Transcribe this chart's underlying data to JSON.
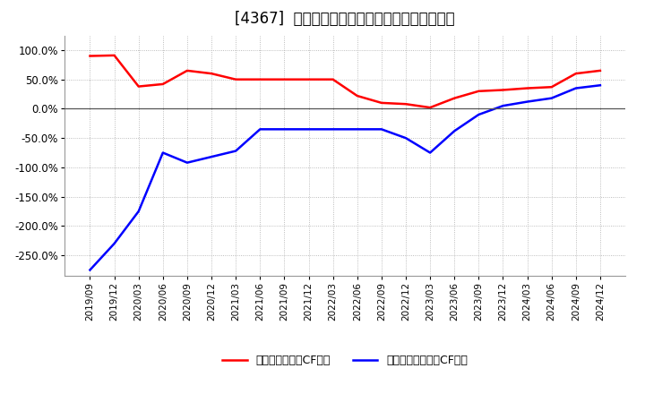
{
  "title": "[4367]  有利子負債キャッシュフロー比率の推移",
  "x_labels": [
    "2019/09",
    "2019/12",
    "2020/03",
    "2020/06",
    "2020/09",
    "2020/12",
    "2021/03",
    "2021/06",
    "2021/09",
    "2021/12",
    "2022/03",
    "2022/06",
    "2022/09",
    "2022/12",
    "2023/03",
    "2023/06",
    "2023/09",
    "2023/12",
    "2024/03",
    "2024/06",
    "2024/09",
    "2024/12"
  ],
  "red_values": [
    90.0,
    91.0,
    38.0,
    42.0,
    65.0,
    60.0,
    50.0,
    50.0,
    50.0,
    50.0,
    50.0,
    22.0,
    10.0,
    8.0,
    2.0,
    18.0,
    30.0,
    32.0,
    35.0,
    37.0,
    60.0,
    65.0
  ],
  "blue_values": [
    -275.0,
    -230.0,
    -175.0,
    -75.0,
    -92.0,
    -82.0,
    -72.0,
    -35.0,
    -35.0,
    -35.0,
    -35.0,
    -35.0,
    -35.0,
    -50.0,
    -75.0,
    -38.0,
    -10.0,
    5.0,
    12.0,
    18.0,
    35.0,
    40.0
  ],
  "red_color": "#ff0000",
  "blue_color": "#0000ff",
  "background_color": "#ffffff",
  "grid_color": "#aaaaaa",
  "legend_red": "有利子負債営業CF比率",
  "legend_blue": "有利子負債フリーCF比率",
  "ylim": [
    -285,
    125
  ],
  "yticks": [
    100.0,
    50.0,
    0.0,
    -50.0,
    -100.0,
    -150.0,
    -200.0,
    -250.0
  ],
  "title_fontsize": 12,
  "legend_fontsize": 9,
  "tick_fontsize": 7.5,
  "ytick_fontsize": 8.5
}
